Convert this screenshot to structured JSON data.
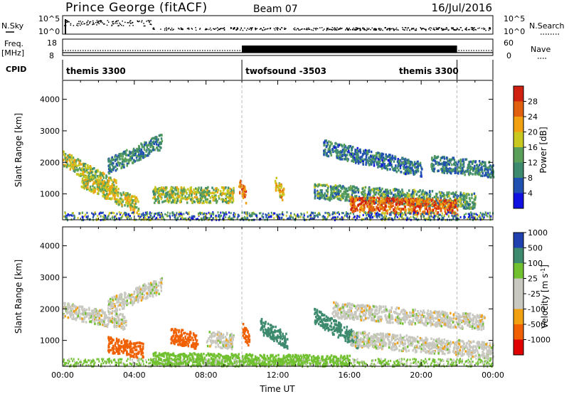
{
  "header": {
    "station": "Prince George (fitACF)",
    "beam": "Beam 07",
    "date": "16/Jul/2016"
  },
  "strip_labels": {
    "nsky": "N.Sky",
    "nsky_ticks": [
      "10^5",
      "10^0"
    ],
    "nsearch": "N.Search",
    "nsearch_ticks": [
      "10^5",
      "10^0"
    ],
    "freq": "Freq.",
    "freq_unit": "[MHz]",
    "freq_ticks": [
      "18",
      "8"
    ],
    "nave": "Nave",
    "nave_ticks": [
      "60",
      "0"
    ],
    "cpid": "CPID"
  },
  "cpid_segments": [
    {
      "label": "themis 3300",
      "start_h": 0,
      "end_h": 10
    },
    {
      "label": "twofsound -3503",
      "start_h": 10,
      "end_h": 22
    },
    {
      "label": "themis 3300",
      "start_h": 22,
      "end_h": 24
    }
  ],
  "colors": {
    "power": [
      "#1010e0",
      "#2050b0",
      "#3d8a6e",
      "#5aa05a",
      "#c8c820",
      "#f0a010",
      "#e06010",
      "#d02010"
    ],
    "velocity": [
      "#e00000",
      "#f06000",
      "#f0a010",
      "#c8c8c0",
      "#c8c8c0",
      "#70c030",
      "#3d8a6e",
      "#2040b0"
    ]
  },
  "chart_data": [
    {
      "type": "heatmap",
      "title": "",
      "xlabel": "",
      "ylabel": "Slant Range [km]",
      "xlim": [
        0,
        24
      ],
      "ylim": [
        180,
        4600
      ],
      "yticks": [
        1000,
        2000,
        3000,
        4000
      ],
      "colorbar": {
        "label": "Power [dB]",
        "ticks": [
          "4",
          "8",
          "12",
          "16",
          "20",
          "24",
          "28"
        ],
        "range": [
          0,
          32
        ]
      },
      "echo_bands": [
        {
          "t_start": 0.0,
          "t_end": 3.0,
          "range_start": 2150,
          "range_end": 1200,
          "level": 16
        },
        {
          "t_start": 1.0,
          "t_end": 4.2,
          "range_start": 1500,
          "range_end": 650,
          "level": 18
        },
        {
          "t_start": 2.5,
          "t_end": 5.5,
          "range_start": 1900,
          "range_end": 2700,
          "level": 10
        },
        {
          "t_start": 5.0,
          "t_end": 9.5,
          "range_start": 1000,
          "range_end": 1000,
          "level": 16
        },
        {
          "t_start": 9.8,
          "t_end": 10.2,
          "range_start": 1350,
          "range_end": 950,
          "level": 26
        },
        {
          "t_start": 11.8,
          "t_end": 12.3,
          "range_start": 1400,
          "range_end": 1000,
          "level": 20
        },
        {
          "t_start": 14.5,
          "t_end": 20.0,
          "range_start": 2500,
          "range_end": 1800,
          "level": 9
        },
        {
          "t_start": 14.0,
          "t_end": 23.0,
          "range_start": 1100,
          "range_end": 800,
          "level": 12
        },
        {
          "t_start": 16.0,
          "t_end": 22.0,
          "range_start": 700,
          "range_end": 600,
          "level": 26
        },
        {
          "t_start": 20.5,
          "t_end": 24.0,
          "range_start": 2000,
          "range_end": 1800,
          "level": 10
        }
      ]
    },
    {
      "type": "heatmap",
      "title": "",
      "xlabel": "Time UT",
      "ylabel": "Slant Range [km]",
      "xlim": [
        0,
        24
      ],
      "ylim": [
        180,
        4600
      ],
      "yticks": [
        1000,
        2000,
        3000,
        4000
      ],
      "xticks": [
        "00:00",
        "04:00",
        "08:00",
        "12:00",
        "16:00",
        "20:00",
        "00:00"
      ],
      "colorbar": {
        "label": "Velocity [m s^-1]",
        "ticks": [
          "-1000",
          "-500",
          "-100",
          "-25",
          "25",
          "100",
          "500",
          "1000"
        ],
        "range": [
          -1200,
          1200
        ]
      },
      "echo_bands": [
        {
          "t_start": 0.0,
          "t_end": 3.5,
          "range_start": 2000,
          "range_end": 1600,
          "level": 0
        },
        {
          "t_start": 2.5,
          "t_end": 5.5,
          "range_start": 2100,
          "range_end": 2800,
          "level": 0
        },
        {
          "t_start": 2.5,
          "t_end": 4.5,
          "range_start": 900,
          "range_end": 700,
          "level": -150
        },
        {
          "t_start": 6.0,
          "t_end": 7.5,
          "range_start": 1200,
          "range_end": 1000,
          "level": -150
        },
        {
          "t_start": 8.0,
          "t_end": 9.5,
          "range_start": 1100,
          "range_end": 1000,
          "level": 0
        },
        {
          "t_start": 10.0,
          "t_end": 10.4,
          "range_start": 1350,
          "range_end": 1000,
          "level": -150
        },
        {
          "t_start": 11.0,
          "t_end": 12.5,
          "range_start": 1500,
          "range_end": 1000,
          "level": 300
        },
        {
          "t_start": 14.0,
          "t_end": 16.5,
          "range_start": 1800,
          "range_end": 1000,
          "level": 300
        },
        {
          "t_start": 15.0,
          "t_end": 23.5,
          "range_start": 2000,
          "range_end": 1600,
          "level": 0
        },
        {
          "t_start": 16.0,
          "t_end": 24.0,
          "range_start": 1100,
          "range_end": 700,
          "level": 0
        },
        {
          "t_start": 5.0,
          "t_end": 16.0,
          "range_start": 400,
          "range_end": 300,
          "level": 60
        }
      ]
    }
  ]
}
